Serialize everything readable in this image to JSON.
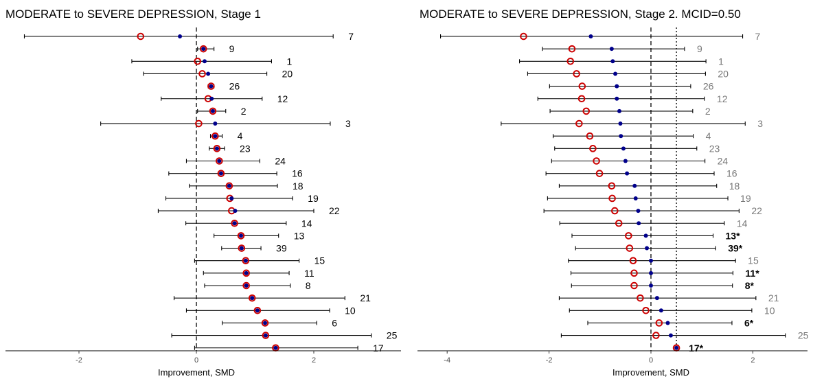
{
  "colors": {
    "ci": "#000000",
    "mean": "#cc0000",
    "point": "#00008b",
    "label_normal": "#000000",
    "label_muted": "#777777"
  },
  "chart_data": [
    {
      "type": "forest",
      "title": "MODERATE to SEVERE DEPRESSION, Stage 1",
      "xlabel": "Improvement, SMD",
      "xlim": [
        -3.2,
        3.2
      ],
      "xticks": [
        -2,
        0,
        2
      ],
      "reference_lines": [
        {
          "x": 0,
          "style": "dashed"
        }
      ],
      "rows": [
        {
          "label": "7",
          "lo": -2.93,
          "hi": 2.33,
          "mean": -0.95,
          "point": -0.28,
          "bold": false,
          "muted": false
        },
        {
          "label": "9",
          "lo": 0.02,
          "hi": 0.3,
          "mean": 0.12,
          "point": 0.12,
          "bold": false,
          "muted": false
        },
        {
          "label": "1",
          "lo": -1.1,
          "hi": 1.28,
          "mean": 0.02,
          "point": 0.14,
          "bold": false,
          "muted": false
        },
        {
          "label": "20",
          "lo": -0.9,
          "hi": 1.2,
          "mean": 0.1,
          "point": 0.2,
          "bold": false,
          "muted": false
        },
        {
          "label": "26",
          "lo": 0.2,
          "hi": 0.3,
          "mean": 0.25,
          "point": 0.25,
          "bold": false,
          "muted": false
        },
        {
          "label": "12",
          "lo": -0.6,
          "hi": 1.12,
          "mean": 0.2,
          "point": 0.26,
          "bold": false,
          "muted": false
        },
        {
          "label": "2",
          "lo": 0.02,
          "hi": 0.5,
          "mean": 0.28,
          "point": 0.28,
          "bold": false,
          "muted": false
        },
        {
          "label": "3",
          "lo": -1.63,
          "hi": 2.28,
          "mean": 0.04,
          "point": 0.32,
          "bold": false,
          "muted": false
        },
        {
          "label": "4",
          "lo": 0.24,
          "hi": 0.44,
          "mean": 0.32,
          "point": 0.32,
          "bold": false,
          "muted": false
        },
        {
          "label": "23",
          "lo": 0.22,
          "hi": 0.48,
          "mean": 0.35,
          "point": 0.35,
          "bold": false,
          "muted": false
        },
        {
          "label": "24",
          "lo": -0.17,
          "hi": 1.08,
          "mean": 0.39,
          "point": 0.39,
          "bold": false,
          "muted": false
        },
        {
          "label": "16",
          "lo": -0.47,
          "hi": 1.37,
          "mean": 0.42,
          "point": 0.42,
          "bold": false,
          "muted": false
        },
        {
          "label": "18",
          "lo": -0.12,
          "hi": 1.38,
          "mean": 0.56,
          "point": 0.56,
          "bold": false,
          "muted": false
        },
        {
          "label": "19",
          "lo": -0.52,
          "hi": 1.64,
          "mean": 0.57,
          "point": 0.6,
          "bold": false,
          "muted": false
        },
        {
          "label": "22",
          "lo": -0.65,
          "hi": 2.0,
          "mean": 0.6,
          "point": 0.66,
          "bold": false,
          "muted": false
        },
        {
          "label": "14",
          "lo": -0.18,
          "hi": 1.53,
          "mean": 0.65,
          "point": 0.65,
          "bold": false,
          "muted": false
        },
        {
          "label": "13",
          "lo": 0.3,
          "hi": 1.4,
          "mean": 0.76,
          "point": 0.76,
          "bold": false,
          "muted": false
        },
        {
          "label": "39",
          "lo": 0.43,
          "hi": 1.1,
          "mean": 0.77,
          "point": 0.77,
          "bold": false,
          "muted": false
        },
        {
          "label": "15",
          "lo": -0.03,
          "hi": 1.75,
          "mean": 0.84,
          "point": 0.84,
          "bold": false,
          "muted": false
        },
        {
          "label": "11",
          "lo": 0.12,
          "hi": 1.58,
          "mean": 0.85,
          "point": 0.85,
          "bold": false,
          "muted": false
        },
        {
          "label": "8",
          "lo": 0.14,
          "hi": 1.6,
          "mean": 0.85,
          "point": 0.85,
          "bold": false,
          "muted": false
        },
        {
          "label": "21",
          "lo": -0.38,
          "hi": 2.53,
          "mean": 0.95,
          "point": 0.95,
          "bold": false,
          "muted": false
        },
        {
          "label": "10",
          "lo": -0.17,
          "hi": 2.27,
          "mean": 1.04,
          "point": 1.04,
          "bold": false,
          "muted": false
        },
        {
          "label": "6",
          "lo": 0.44,
          "hi": 2.05,
          "mean": 1.17,
          "point": 1.17,
          "bold": false,
          "muted": false
        },
        {
          "label": "25",
          "lo": -0.42,
          "hi": 2.98,
          "mean": 1.18,
          "point": 1.18,
          "bold": false,
          "muted": false
        },
        {
          "label": "17",
          "lo": -0.03,
          "hi": 2.75,
          "mean": 1.35,
          "point": 1.35,
          "bold": false,
          "muted": false
        }
      ]
    },
    {
      "type": "forest",
      "title": "MODERATE to SEVERE DEPRESSION, Stage 2. MCID=0.50",
      "xlabel": "Improvement, SMD",
      "xlim": [
        -4.8,
        3.1
      ],
      "xticks": [
        -4,
        -2,
        0,
        2
      ],
      "reference_lines": [
        {
          "x": 0,
          "style": "dashed"
        },
        {
          "x": 0.5,
          "style": "dotted"
        }
      ],
      "rows": [
        {
          "label": "7",
          "lo": -4.13,
          "hi": 1.8,
          "mean": -2.5,
          "point": -1.18,
          "bold": false,
          "muted": true
        },
        {
          "label": "9",
          "lo": -2.13,
          "hi": 0.66,
          "mean": -1.55,
          "point": -0.77,
          "bold": false,
          "muted": true
        },
        {
          "label": "1",
          "lo": -2.58,
          "hi": 1.08,
          "mean": -1.58,
          "point": -0.75,
          "bold": false,
          "muted": true
        },
        {
          "label": "20",
          "lo": -2.42,
          "hi": 1.07,
          "mean": -1.46,
          "point": -0.7,
          "bold": false,
          "muted": true
        },
        {
          "label": "26",
          "lo": -1.99,
          "hi": 0.78,
          "mean": -1.35,
          "point": -0.67,
          "bold": false,
          "muted": true
        },
        {
          "label": "12",
          "lo": -2.22,
          "hi": 1.05,
          "mean": -1.36,
          "point": -0.67,
          "bold": false,
          "muted": true
        },
        {
          "label": "2",
          "lo": -1.98,
          "hi": 0.82,
          "mean": -1.27,
          "point": -0.62,
          "bold": false,
          "muted": true
        },
        {
          "label": "3",
          "lo": -2.94,
          "hi": 1.85,
          "mean": -1.41,
          "point": -0.6,
          "bold": false,
          "muted": true
        },
        {
          "label": "4",
          "lo": -1.92,
          "hi": 0.83,
          "mean": -1.2,
          "point": -0.59,
          "bold": false,
          "muted": true
        },
        {
          "label": "23",
          "lo": -1.89,
          "hi": 0.9,
          "mean": -1.14,
          "point": -0.54,
          "bold": false,
          "muted": true
        },
        {
          "label": "24",
          "lo": -1.95,
          "hi": 1.06,
          "mean": -1.07,
          "point": -0.5,
          "bold": false,
          "muted": true
        },
        {
          "label": "16",
          "lo": -2.06,
          "hi": 1.24,
          "mean": -1.01,
          "point": -0.47,
          "bold": false,
          "muted": true
        },
        {
          "label": "18",
          "lo": -1.8,
          "hi": 1.29,
          "mean": -0.77,
          "point": -0.32,
          "bold": false,
          "muted": true
        },
        {
          "label": "19",
          "lo": -2.03,
          "hi": 1.51,
          "mean": -0.76,
          "point": -0.3,
          "bold": false,
          "muted": true
        },
        {
          "label": "22",
          "lo": -2.1,
          "hi": 1.73,
          "mean": -0.71,
          "point": -0.25,
          "bold": false,
          "muted": true
        },
        {
          "label": "14",
          "lo": -1.79,
          "hi": 1.44,
          "mean": -0.63,
          "point": -0.24,
          "bold": false,
          "muted": true
        },
        {
          "label": "13*",
          "lo": -1.55,
          "hi": 1.22,
          "mean": -0.44,
          "point": -0.1,
          "bold": true,
          "muted": false
        },
        {
          "label": "39*",
          "lo": -1.48,
          "hi": 1.27,
          "mean": -0.42,
          "point": -0.08,
          "bold": true,
          "muted": false
        },
        {
          "label": "15",
          "lo": -1.62,
          "hi": 1.66,
          "mean": -0.35,
          "point": 0.0,
          "bold": false,
          "muted": true
        },
        {
          "label": "11*",
          "lo": -1.57,
          "hi": 1.61,
          "mean": -0.33,
          "point": 0.0,
          "bold": true,
          "muted": false
        },
        {
          "label": "8*",
          "lo": -1.56,
          "hi": 1.6,
          "mean": -0.33,
          "point": 0.0,
          "bold": true,
          "muted": false
        },
        {
          "label": "21",
          "lo": -1.8,
          "hi": 2.06,
          "mean": -0.21,
          "point": 0.12,
          "bold": false,
          "muted": true
        },
        {
          "label": "10",
          "lo": -1.6,
          "hi": 1.98,
          "mean": -0.1,
          "point": 0.2,
          "bold": false,
          "muted": true
        },
        {
          "label": "6*",
          "lo": -1.24,
          "hi": 1.59,
          "mean": 0.16,
          "point": 0.33,
          "bold": true,
          "muted": false
        },
        {
          "label": "25",
          "lo": -1.76,
          "hi": 2.64,
          "mean": 0.1,
          "point": 0.39,
          "bold": false,
          "muted": true
        },
        {
          "label": "17*",
          "lo": 0.5,
          "hi": 0.5,
          "mean": 0.5,
          "point": 0.5,
          "bold": true,
          "muted": false
        }
      ]
    }
  ]
}
